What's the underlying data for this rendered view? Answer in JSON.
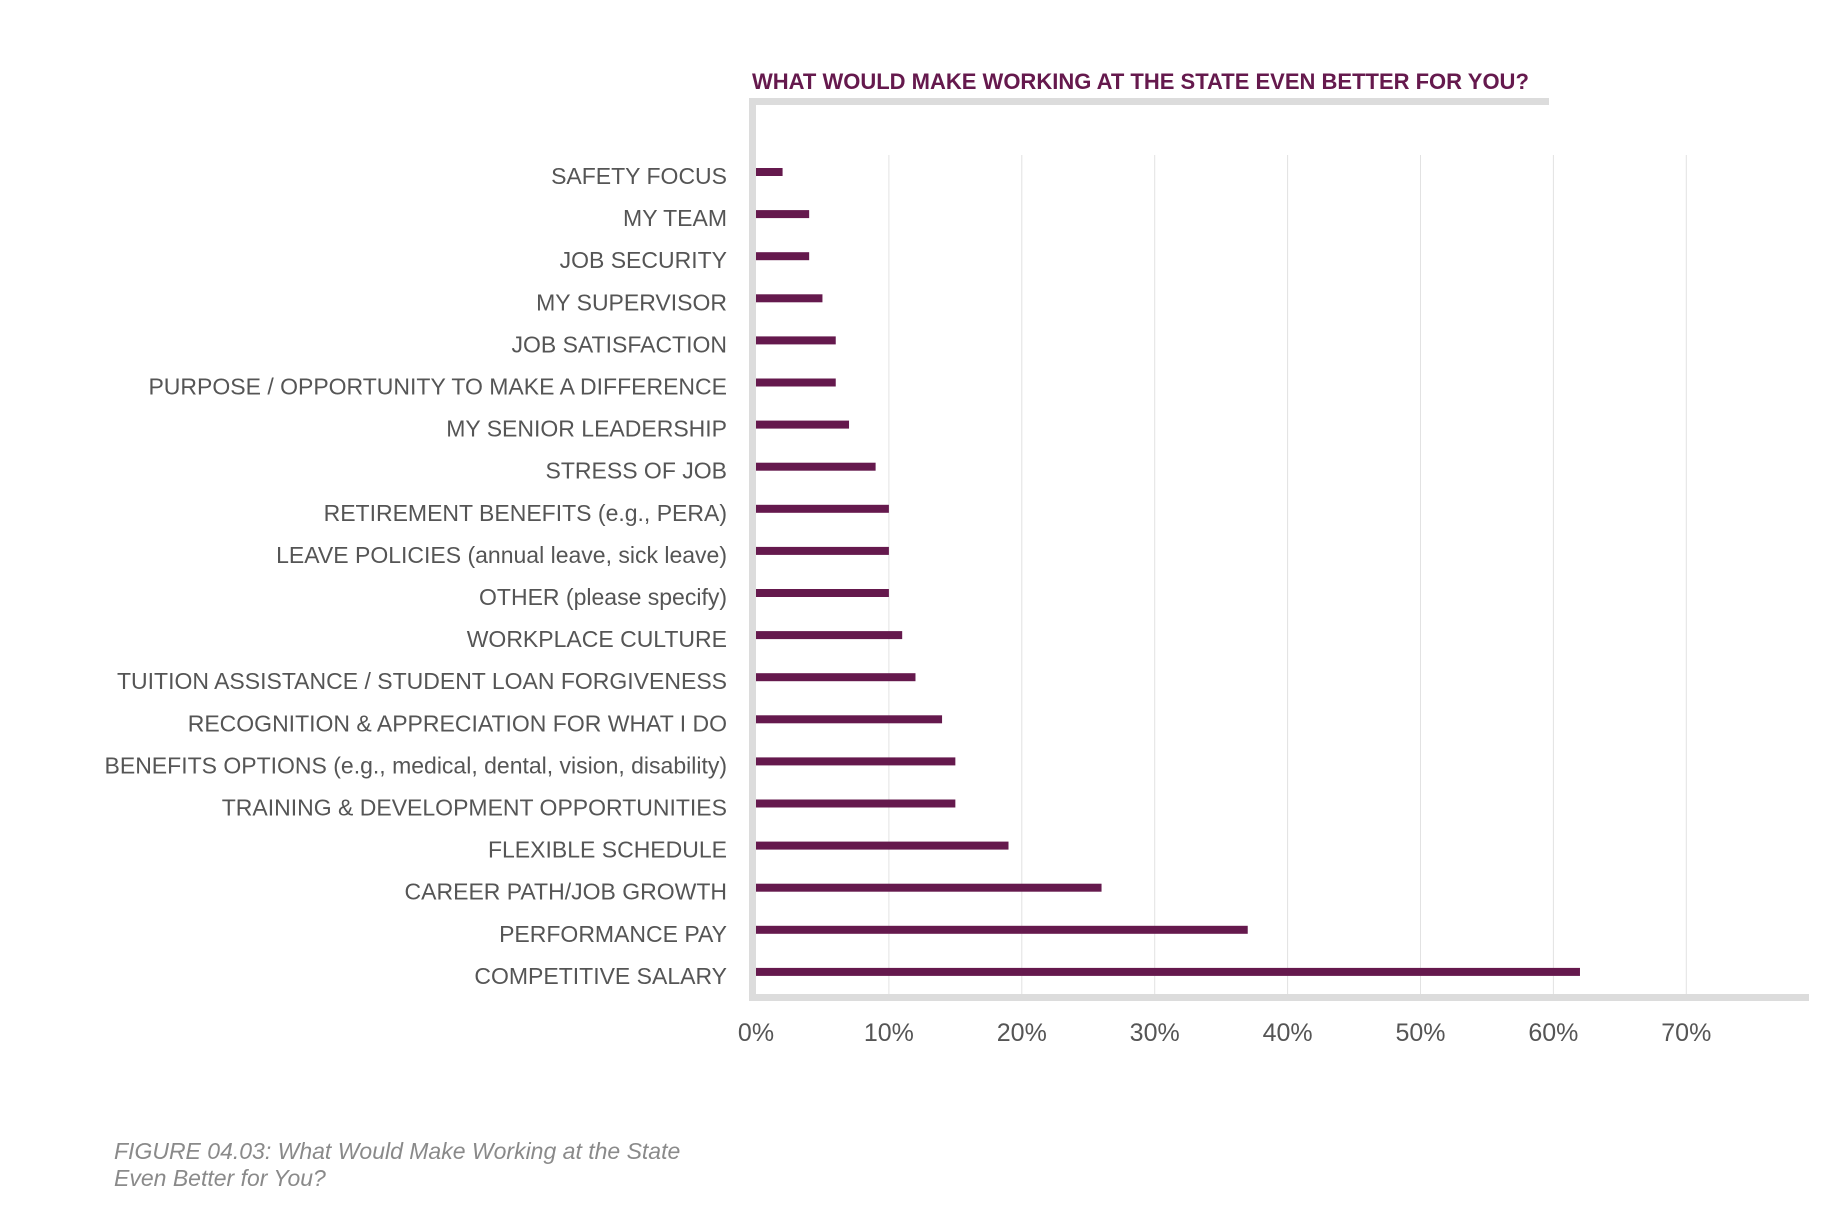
{
  "chart_data": {
    "type": "bar",
    "orientation": "horizontal",
    "title": "WHAT WOULD MAKE WORKING AT THE STATE EVEN BETTER FOR YOU?",
    "categories": [
      "SAFETY FOCUS",
      "MY TEAM",
      "JOB SECURITY",
      "MY SUPERVISOR",
      "JOB SATISFACTION",
      "PURPOSE / OPPORTUNITY TO MAKE A DIFFERENCE",
      "MY SENIOR LEADERSHIP",
      "STRESS OF JOB",
      "RETIREMENT BENEFITS (e.g., PERA)",
      "LEAVE POLICIES (annual leave, sick leave)",
      "OTHER (please specify)",
      "WORKPLACE CULTURE",
      "TUITION ASSISTANCE / STUDENT LOAN FORGIVENESS",
      "RECOGNITION & APPRECIATION FOR WHAT I DO",
      "BENEFITS OPTIONS (e.g., medical, dental, vision, disability)",
      "TRAINING & DEVELOPMENT OPPORTUNITIES",
      "FLEXIBLE SCHEDULE",
      "CAREER PATH/JOB GROWTH",
      "PERFORMANCE PAY",
      "COMPETITIVE SALARY"
    ],
    "values": [
      2,
      4,
      4,
      5,
      6,
      6,
      7,
      9,
      10,
      10,
      10,
      11,
      12,
      14,
      15,
      15,
      19,
      26,
      37,
      62
    ],
    "x_ticks": [
      "0%",
      "10%",
      "20%",
      "30%",
      "40%",
      "50%",
      "60%",
      "70%"
    ],
    "xlim": [
      0,
      70
    ],
    "grid": "vertical",
    "bar_color": "#65194d",
    "title_color": "#65194d",
    "axis_color": "#dcdcdc"
  },
  "caption": {
    "line1": "FIGURE 04.03: What Would Make Working at the State",
    "line2": "Even Better for You?"
  }
}
